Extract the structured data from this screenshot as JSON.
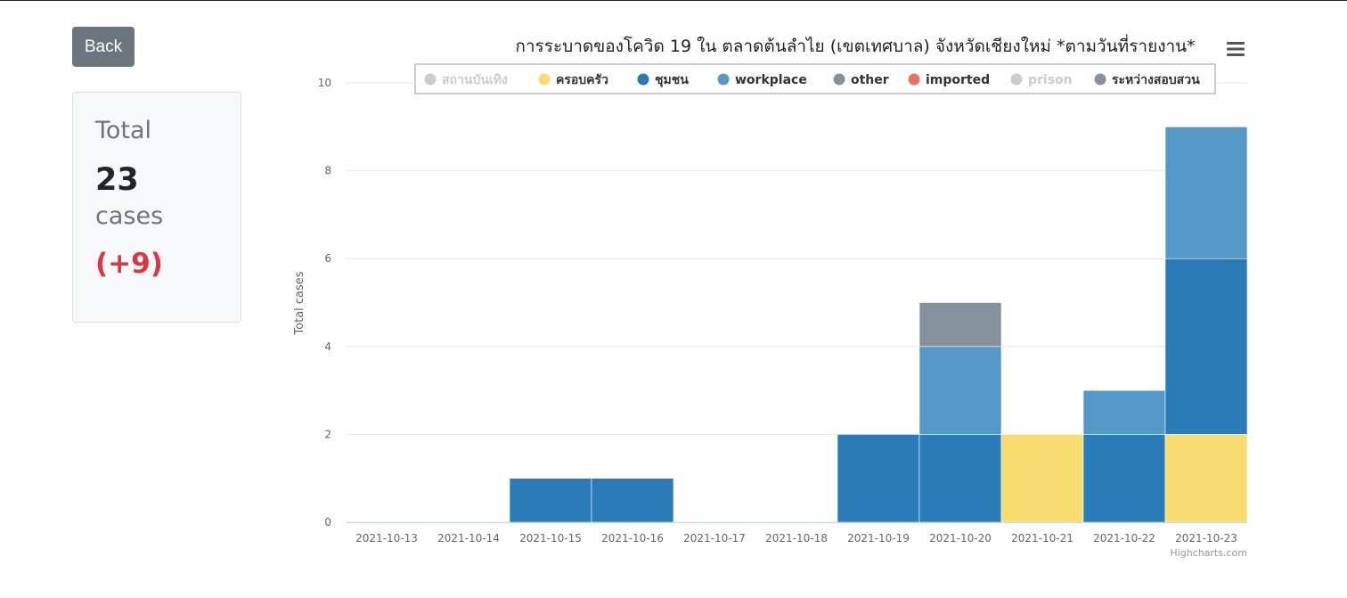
{
  "back_label": "Back",
  "total": {
    "label": "Total",
    "value": "23",
    "unit": "cases",
    "delta": "(+9)"
  },
  "credit": "Highcharts.com",
  "chart_data": {
    "type": "bar",
    "stacked": true,
    "title": "การระบาดของโควิด 19 ใน ตลาดต้นลำไย (เขตเทศบาล) จังหวัดเชียงใหม่ *ตามวันที่รายงาน*",
    "xlabel": "",
    "ylabel": "Total cases",
    "ylim": [
      0,
      10
    ],
    "yticks": [
      0,
      2,
      4,
      6,
      8,
      10
    ],
    "grid": true,
    "legend_position": "top",
    "categories": [
      "2021-10-13",
      "2021-10-14",
      "2021-10-15",
      "2021-10-16",
      "2021-10-17",
      "2021-10-18",
      "2021-10-19",
      "2021-10-20",
      "2021-10-21",
      "2021-10-22",
      "2021-10-23"
    ],
    "series": [
      {
        "name": "สถานบันเทิง",
        "color": "#cccccc",
        "visible": false,
        "values": [
          0,
          0,
          0,
          0,
          0,
          0,
          0,
          0,
          0,
          0,
          0
        ]
      },
      {
        "name": "ครอบครัว",
        "color": "#f7dc6f",
        "visible": true,
        "values": [
          0,
          0,
          0,
          0,
          0,
          0,
          0,
          0,
          2,
          0,
          2
        ]
      },
      {
        "name": "ชุมชน",
        "color": "#2b7bb9",
        "visible": true,
        "values": [
          0,
          0,
          1,
          1,
          0,
          0,
          2,
          2,
          0,
          2,
          4
        ]
      },
      {
        "name": "workplace",
        "color": "#5499c7",
        "visible": true,
        "values": [
          0,
          0,
          0,
          0,
          0,
          0,
          0,
          2,
          0,
          1,
          3
        ]
      },
      {
        "name": "other",
        "color": "#85929e",
        "visible": true,
        "values": [
          0,
          0,
          0,
          0,
          0,
          0,
          0,
          1,
          0,
          0,
          0
        ]
      },
      {
        "name": "imported",
        "color": "#ec7063",
        "visible": true,
        "values": [
          0,
          0,
          0,
          0,
          0,
          0,
          0,
          0,
          0,
          0,
          0
        ]
      },
      {
        "name": "prison",
        "color": "#cccccc",
        "visible": false,
        "values": [
          0,
          0,
          0,
          0,
          0,
          0,
          0,
          0,
          0,
          0,
          0
        ]
      },
      {
        "name": "ระหว่างสอบสวน",
        "color": "#85929e",
        "visible": true,
        "values": [
          0,
          0,
          0,
          0,
          0,
          0,
          0,
          0,
          0,
          0,
          0
        ]
      }
    ]
  }
}
